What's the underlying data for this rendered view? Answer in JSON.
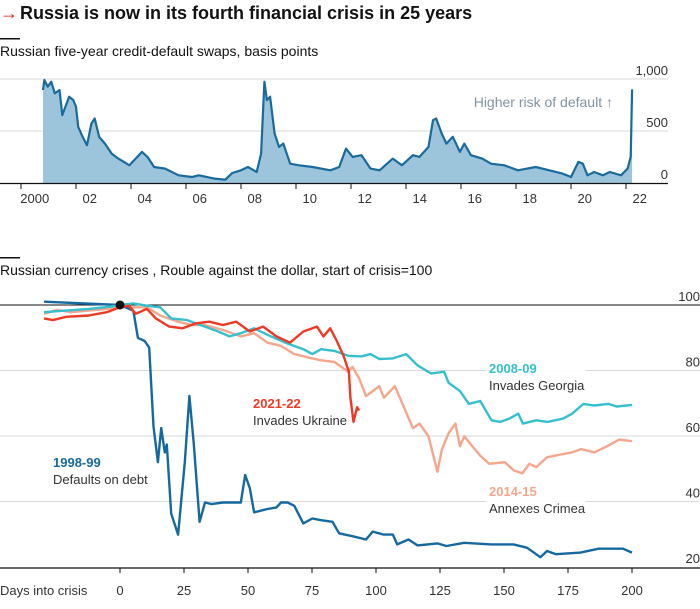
{
  "title": "Russia is now in its fourth financial crisis in 25 years",
  "colors": {
    "arrow": "#e3120b",
    "cds_line": "#1a6a9e",
    "cds_area": "#9cc5db",
    "s1998": "#15699f",
    "s2008": "#36bfcd",
    "s2014": "#f5a68c",
    "s2021": "#ee3a24"
  },
  "chart_data": [
    {
      "type": "area",
      "title": "Russian five-year credit-default swaps, basis points",
      "annotation": "Higher risk of default ↑",
      "ylim": [
        0,
        1000
      ],
      "yticks": [
        0,
        500,
        1000
      ],
      "ytick_labels": [
        "0",
        "500",
        "1,000"
      ],
      "xtick_labels": [
        "2000",
        "02",
        "04",
        "06",
        "08",
        "10",
        "12",
        "14",
        "16",
        "18",
        "20",
        "22"
      ],
      "xtick_years": [
        2000,
        2002,
        2004,
        2006,
        2008,
        2010,
        2012,
        2014,
        2016,
        2018,
        2020,
        2022
      ],
      "grid": true,
      "x": [
        2000.8,
        2000.85,
        2000.97,
        2001.1,
        2001.23,
        2001.4,
        2001.5,
        2001.75,
        2001.9,
        2002.0,
        2002.08,
        2002.24,
        2002.4,
        2002.56,
        2002.68,
        2002.84,
        2003.05,
        2003.3,
        2003.54,
        2003.94,
        2004.4,
        2004.6,
        2004.84,
        2005.24,
        2005.73,
        2006.22,
        2006.46,
        2007.03,
        2007.43,
        2007.68,
        2008.0,
        2008.25,
        2008.57,
        2008.73,
        2008.85,
        2008.94,
        2009.06,
        2009.22,
        2009.38,
        2009.54,
        2009.79,
        2010.11,
        2010.6,
        2011.25,
        2011.57,
        2011.82,
        2012.06,
        2012.38,
        2012.71,
        2013.04,
        2013.52,
        2013.85,
        2014.25,
        2014.49,
        2014.82,
        2014.98,
        2015.1,
        2015.3,
        2015.47,
        2015.7,
        2015.96,
        2016.12,
        2016.36,
        2016.77,
        2017.09,
        2017.58,
        2018.07,
        2018.72,
        2019.21,
        2019.69,
        2020.0,
        2020.27,
        2020.43,
        2020.6,
        2020.84,
        2021.16,
        2021.41,
        2021.82,
        2022.06,
        2022.17,
        2022.22
      ],
      "values": [
        894,
        990,
        926,
        974,
        862,
        894,
        653,
        830,
        797,
        733,
        540,
        444,
        363,
        572,
        620,
        444,
        379,
        283,
        235,
        170,
        299,
        251,
        154,
        138,
        74,
        58,
        74,
        42,
        32,
        96,
        122,
        154,
        106,
        283,
        974,
        797,
        830,
        476,
        347,
        379,
        186,
        170,
        154,
        122,
        154,
        331,
        251,
        267,
        138,
        122,
        235,
        170,
        267,
        251,
        347,
        604,
        620,
        476,
        379,
        444,
        299,
        379,
        267,
        235,
        186,
        170,
        122,
        154,
        122,
        90,
        58,
        203,
        186,
        74,
        106,
        74,
        106,
        74,
        138,
        251,
        900
      ]
    },
    {
      "type": "line",
      "title": "Russian currency crises , Rouble against the dollar, start of crisis=100",
      "xlabel": "Days into crisis",
      "xlim": [
        -30,
        200
      ],
      "ylim": [
        20,
        100
      ],
      "xticks": [
        0,
        25,
        50,
        75,
        100,
        125,
        150,
        175,
        200
      ],
      "xtick_labels": [
        "0",
        "25",
        "50",
        "75",
        "100",
        "125",
        "150",
        "175",
        "200"
      ],
      "yticks": [
        20,
        40,
        60,
        80,
        100
      ],
      "ytick_labels": [
        "20",
        "40",
        "60",
        "80",
        "100"
      ],
      "grid": true,
      "series": [
        {
          "name": "1998-99",
          "note": "Defaults on debt",
          "color_key": "s1998",
          "x": [
            -29.7,
            0,
            5.2,
            7,
            9.6,
            11.4,
            13.1,
            14.8,
            16.1,
            17.5,
            18.3,
            20,
            22.7,
            25.3,
            27.1,
            28.8,
            31.1,
            33.2,
            35.8,
            40.2,
            47.2,
            48.9,
            50.7,
            52.4,
            57.6,
            61.1,
            62.9,
            65.5,
            68.1,
            71.6,
            75.1,
            78.6,
            83,
            85.6,
            90.8,
            96.1,
            98.7,
            103,
            106.6,
            108.3,
            112.7,
            116.2,
            124,
            127.5,
            134.5,
            145,
            153.7,
            159,
            164.2,
            166.8,
            170.3,
            179.9,
            186.9,
            196.5,
            200
          ],
          "y": [
            101,
            100,
            98.3,
            90,
            89,
            87,
            62.9,
            52,
            62.4,
            55,
            57.4,
            36.3,
            29.9,
            52,
            72.2,
            57.9,
            33.8,
            39.7,
            39.2,
            39.7,
            39.7,
            48.1,
            44.1,
            36.7,
            37.7,
            38.2,
            39.7,
            39.7,
            38.7,
            33.3,
            34.8,
            34.3,
            33.8,
            30.3,
            29.4,
            28.4,
            30.8,
            29.9,
            29.9,
            26.9,
            28.4,
            26.6,
            27.2,
            26.4,
            27.4,
            26.9,
            26.9,
            25.9,
            23,
            24.9,
            23.9,
            24.4,
            25.6,
            25.6,
            24.4
          ]
        },
        {
          "name": "2008-09",
          "note": "Invades Georgia",
          "color_key": "s2008",
          "x": [
            -29.7,
            -21,
            -12.2,
            -3.5,
            0,
            5.2,
            10.5,
            15.7,
            20,
            26.2,
            31.4,
            38.4,
            42.8,
            47.2,
            52.4,
            57.6,
            64.6,
            71.6,
            75.1,
            78.6,
            83.8,
            89.1,
            94.3,
            97.8,
            101.3,
            106.6,
            111.8,
            116.2,
            121.4,
            126.6,
            128.4,
            132.8,
            136.3,
            140.7,
            145.1,
            148.6,
            152.1,
            155.6,
            157.4,
            162.6,
            167,
            173.1,
            176.6,
            181,
            185.3,
            190.6,
            194.1,
            200
          ],
          "y": [
            97.8,
            98.3,
            98.8,
            99.5,
            100,
            100.5,
            99.8,
            99.3,
            95.9,
            95.4,
            93.9,
            91.9,
            90.4,
            91.4,
            92.9,
            90.9,
            88.5,
            86.5,
            85,
            86.5,
            86,
            84.5,
            84.3,
            85,
            83.5,
            83.7,
            85,
            81.6,
            79.1,
            79.6,
            76.2,
            73.7,
            69.8,
            70.7,
            64.8,
            64.3,
            65.3,
            66.8,
            63.8,
            64.8,
            64.3,
            65.3,
            66.8,
            69.8,
            69.3,
            69.8,
            69,
            69.5
          ]
        },
        {
          "name": "2014-15",
          "note": "Annexes Crimea",
          "color_key": "s2014",
          "x": [
            -29.7,
            -24.5,
            -19.2,
            -12.2,
            -5.2,
            0,
            5.2,
            10.5,
            15.7,
            22.7,
            28,
            33.2,
            40.2,
            47.2,
            52.4,
            57.6,
            62.9,
            68.1,
            73.4,
            78.6,
            83.8,
            89.1,
            90.8,
            93.4,
            96.1,
            98.7,
            101.3,
            103.1,
            107.4,
            110.9,
            114.4,
            117,
            120.5,
            124,
            125.8,
            128.4,
            131,
            132.8,
            134.5,
            138,
            140.7,
            144.2,
            150.3,
            153.8,
            157.2,
            159.9,
            162.6,
            166.8,
            173.1,
            176.6,
            180.1,
            185.3,
            190.6,
            195,
            200
          ],
          "y": [
            97.3,
            98.5,
            97.8,
            98.3,
            98.8,
            99.3,
            99.3,
            99.3,
            96.8,
            94.9,
            93.9,
            93.9,
            92.4,
            90.4,
            91.4,
            88.5,
            87.5,
            85,
            84,
            83.1,
            82.6,
            79.6,
            81.1,
            77.6,
            72.2,
            73.7,
            75.2,
            71.7,
            75.2,
            68.8,
            62.4,
            63.8,
            59.9,
            49.1,
            56,
            60.9,
            63.8,
            56.9,
            59.9,
            56.5,
            54,
            51.5,
            52,
            49.5,
            48.6,
            51.5,
            50.5,
            53.5,
            54.5,
            55,
            56,
            55,
            57,
            58.9,
            58.4
          ]
        },
        {
          "name": "2021-22",
          "note": "Invades Ukraine",
          "color_key": "s2021",
          "x": [
            -29.7,
            -26.2,
            -21,
            -12.2,
            -5.2,
            0,
            3.5,
            6.1,
            10.5,
            14,
            19.2,
            24.5,
            29.7,
            34.9,
            40.2,
            45.4,
            50.7,
            55.9,
            61.1,
            66.4,
            71.6,
            76.9,
            79.5,
            82.1,
            84.7,
            87.3,
            89.4,
            90,
            91.2,
            92.6,
            93.4
          ],
          "y": [
            95.9,
            95.4,
            96.4,
            96.8,
            97.8,
            99.3,
            99.8,
            97.3,
            98.8,
            95.9,
            93.4,
            92.9,
            94.4,
            94.9,
            93.9,
            94.9,
            91.9,
            93.4,
            90.4,
            88.5,
            91.9,
            93.4,
            90.4,
            92.9,
            89,
            84.5,
            79.6,
            71.7,
            64.3,
            68.8,
            67.8
          ]
        }
      ]
    }
  ]
}
